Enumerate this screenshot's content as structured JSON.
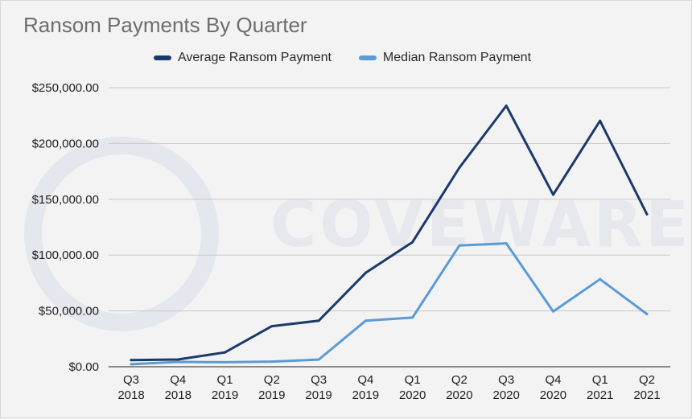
{
  "chart_data": {
    "type": "line",
    "title": "Ransom Payments By Quarter",
    "xlabel": "",
    "ylabel": "",
    "categories": [
      [
        "Q3",
        "2018"
      ],
      [
        "Q4",
        "2018"
      ],
      [
        "Q1",
        "2019"
      ],
      [
        "Q2",
        "2019"
      ],
      [
        "Q3",
        "2019"
      ],
      [
        "Q4",
        "2019"
      ],
      [
        "Q1",
        "2020"
      ],
      [
        "Q2",
        "2020"
      ],
      [
        "Q3",
        "2020"
      ],
      [
        "Q4",
        "2020"
      ],
      [
        "Q1",
        "2021"
      ],
      [
        "Q2",
        "2021"
      ]
    ],
    "ylim": [
      0,
      250000
    ],
    "yticks": [
      {
        "value": 0,
        "label": "$0.00"
      },
      {
        "value": 50000,
        "label": "$50,000.00"
      },
      {
        "value": 100000,
        "label": "$100,000.00"
      },
      {
        "value": 150000,
        "label": "$150,000.00"
      },
      {
        "value": 200000,
        "label": "$200,000.00"
      },
      {
        "value": 250000,
        "label": "$250,000.00"
      }
    ],
    "grid": true,
    "legend_position": "top",
    "series": [
      {
        "name": "Average Ransom Payment",
        "color": "#1b3a6b",
        "values": [
          6000,
          6500,
          12800,
          36300,
          41200,
          84100,
          111600,
          178300,
          233800,
          154100,
          220300,
          136600
        ]
      },
      {
        "name": "Median Ransom Payment",
        "color": "#5b9bd5",
        "values": [
          2200,
          4300,
          4000,
          4600,
          6400,
          41200,
          44000,
          108600,
          110500,
          49500,
          78400,
          47200
        ]
      }
    ]
  },
  "watermark": {
    "text": "COVEWARE"
  }
}
